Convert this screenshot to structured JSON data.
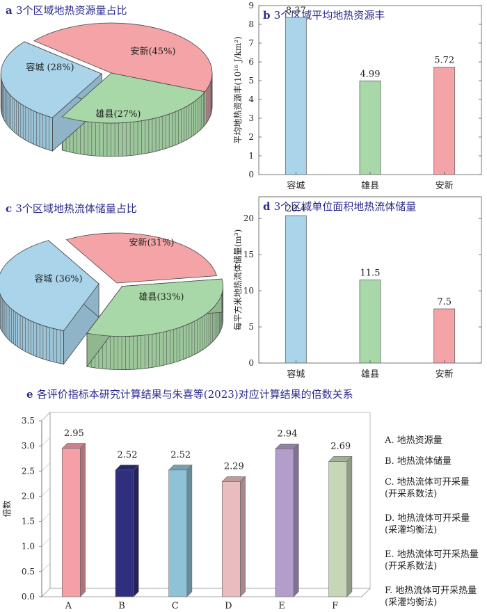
{
  "chart_data": [
    {
      "id": "a",
      "type": "pie",
      "panel_letter": "a",
      "title": "3个区域地热资源量占比",
      "slices": [
        {
          "label": "安新(45%)",
          "value": 45,
          "color": "#f4a3a6"
        },
        {
          "label": "雄县(27%)",
          "value": 27,
          "color": "#a9d8a8"
        },
        {
          "label": "容城 (28%)",
          "value": 28,
          "color": "#a9d4ea"
        }
      ]
    },
    {
      "id": "b",
      "type": "bar",
      "panel_letter": "b",
      "title": "3个区域平均地热资源丰",
      "ylabel": "平均地热资源丰(10¹⁶ J/km²)",
      "categories": [
        "容城",
        "雄县",
        "安新"
      ],
      "values": [
        8.37,
        4.99,
        5.72
      ],
      "value_labels": [
        "8.37",
        "4.99",
        "5.72"
      ],
      "colors": [
        "#a9d4ea",
        "#a9d8a8",
        "#f4a3a6"
      ],
      "ylim": [
        0,
        9
      ],
      "yticks": [
        0,
        1,
        2,
        3,
        4,
        5,
        6,
        7,
        8,
        9
      ]
    },
    {
      "id": "c",
      "type": "pie",
      "panel_letter": "c",
      "title": "3个区域地热流体储量占比",
      "slices": [
        {
          "label": "安新(31%)",
          "value": 31,
          "color": "#f4a3a6"
        },
        {
          "label": "雄县(33%)",
          "value": 33,
          "color": "#a9d8a8"
        },
        {
          "label": "容城 (36%)",
          "value": 36,
          "color": "#a9d4ea"
        }
      ]
    },
    {
      "id": "d",
      "type": "bar",
      "panel_letter": "d",
      "title": "3个区域单位面积地热流体储量",
      "ylabel": "每平方米地热流体储量(m³)",
      "categories": [
        "容城",
        "雄县",
        "安新"
      ],
      "values": [
        20.4,
        11.5,
        7.5
      ],
      "value_labels": [
        "20.4",
        "11.5",
        "7.5"
      ],
      "colors": [
        "#a9d4ea",
        "#a9d8a8",
        "#f4a3a6"
      ],
      "ylim": [
        0,
        23
      ],
      "yticks": [
        0,
        5,
        10,
        15,
        20
      ]
    },
    {
      "id": "e",
      "type": "bar",
      "panel_letter": "e",
      "title": "各评价指标本研究计算结果与朱喜等(2023)对应计算结果的倍数关系",
      "ylabel": "倍数",
      "categories": [
        "A",
        "B",
        "C",
        "D",
        "E",
        "F"
      ],
      "values": [
        2.95,
        2.52,
        2.52,
        2.29,
        2.94,
        2.69
      ],
      "value_labels": [
        "2.95",
        "2.52",
        "2.52",
        "2.29",
        "2.94",
        "2.69"
      ],
      "colors": [
        "#f4a0a6",
        "#2f2f7e",
        "#8ec2d6",
        "#e9bcbf",
        "#b29dcb",
        "#c8d6b8"
      ],
      "ylim": [
        0,
        3.5
      ],
      "yticks": [
        "0.0",
        "0.5",
        "1.0",
        "1.5",
        "2.0",
        "2.5",
        "3.0",
        "3.5"
      ],
      "legend": [
        [
          "A. 地热资源量"
        ],
        [
          "B. 地热流体储量"
        ],
        [
          "C. 地热流体可开采量",
          "(开采系数法)"
        ],
        [
          "D. 地热流体可开采量",
          "(采灌均衡法)"
        ],
        [
          "E. 地热流体可开采热量",
          "(开采系数法)"
        ],
        [
          "F. 地热流体可开采热量",
          "(采灌均衡法)"
        ]
      ]
    }
  ]
}
